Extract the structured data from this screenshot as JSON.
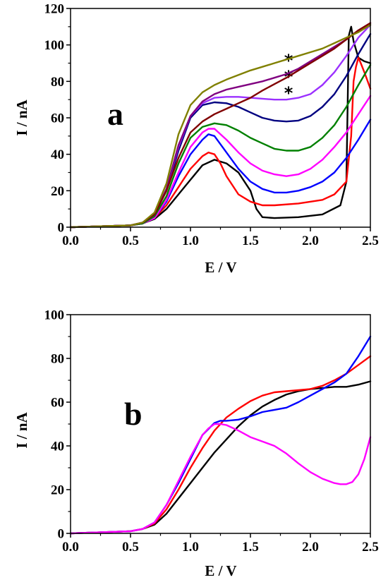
{
  "chart_data": [
    {
      "type": "line",
      "panel_label": "a",
      "xlabel": "E / V",
      "ylabel": "I / nA",
      "xlim": [
        0,
        2.5
      ],
      "ylim": [
        0,
        120
      ],
      "xticks": [
        "0.0",
        "0.5",
        "1.0",
        "1.5",
        "2.0",
        "2.5"
      ],
      "yticks": [
        "0",
        "20",
        "40",
        "60",
        "80",
        "100",
        "120"
      ],
      "annotations": [
        "*",
        "*",
        "*"
      ],
      "grid": false,
      "series": [
        {
          "color": "#000000",
          "x": [
            0,
            0.5,
            0.6,
            0.7,
            0.8,
            0.9,
            1.0,
            1.1,
            1.2,
            1.3,
            1.4,
            1.5,
            1.55,
            1.6,
            1.7,
            1.9,
            2.1,
            2.25,
            2.3,
            2.32,
            2.34,
            2.36,
            2.4,
            2.45,
            2.5
          ],
          "y": [
            0,
            1,
            2,
            4.5,
            10,
            18,
            26,
            34,
            37,
            35,
            30,
            20,
            10,
            5.5,
            5,
            5.5,
            7,
            12,
            25,
            105,
            110,
            102,
            93,
            91,
            90
          ]
        },
        {
          "color": "#ff0000",
          "x": [
            0,
            0.5,
            0.6,
            0.7,
            0.8,
            0.9,
            1.0,
            1.1,
            1.15,
            1.2,
            1.25,
            1.3,
            1.4,
            1.5,
            1.6,
            1.7,
            1.9,
            2.1,
            2.2,
            2.3,
            2.34,
            2.36,
            2.38,
            2.4,
            2.42,
            2.45,
            2.5
          ],
          "y": [
            0,
            1,
            2,
            5,
            12,
            22,
            32,
            39,
            41,
            40,
            35,
            28,
            18,
            14,
            12,
            12,
            13,
            15,
            18,
            25,
            50,
            80,
            88,
            93,
            90,
            85,
            76
          ]
        },
        {
          "color": "#0000ff",
          "x": [
            0,
            0.5,
            0.6,
            0.7,
            0.8,
            0.9,
            1.0,
            1.1,
            1.15,
            1.2,
            1.3,
            1.4,
            1.5,
            1.6,
            1.7,
            1.8,
            1.9,
            2.0,
            2.1,
            2.2,
            2.3,
            2.4,
            2.5
          ],
          "y": [
            0,
            1,
            2,
            5,
            14,
            28,
            40,
            48,
            51,
            50,
            41,
            32,
            25,
            21,
            19,
            19,
            20,
            22,
            25,
            30,
            38,
            48,
            59
          ]
        },
        {
          "color": "#ff00ff",
          "x": [
            0,
            0.5,
            0.6,
            0.7,
            0.8,
            0.9,
            1.0,
            1.1,
            1.15,
            1.2,
            1.3,
            1.4,
            1.5,
            1.6,
            1.7,
            1.8,
            1.9,
            2.0,
            2.1,
            2.2,
            2.3,
            2.4,
            2.5
          ],
          "y": [
            0,
            1,
            2,
            5,
            15,
            30,
            44,
            52,
            54,
            54,
            48,
            41,
            35,
            31,
            29,
            28,
            29,
            32,
            37,
            44,
            52,
            62,
            72
          ]
        },
        {
          "color": "#008000",
          "x": [
            0,
            0.5,
            0.6,
            0.7,
            0.8,
            0.9,
            1.0,
            1.1,
            1.2,
            1.3,
            1.4,
            1.5,
            1.6,
            1.7,
            1.8,
            1.9,
            2.0,
            2.1,
            2.2,
            2.3,
            2.4,
            2.5
          ],
          "y": [
            0,
            1,
            2,
            6,
            17,
            35,
            49,
            55,
            57,
            56,
            53,
            49,
            46,
            43,
            42,
            42,
            44,
            49,
            56,
            66,
            78,
            89
          ]
        },
        {
          "color": "#000080",
          "x": [
            0,
            0.5,
            0.6,
            0.7,
            0.8,
            0.9,
            1.0,
            1.1,
            1.2,
            1.3,
            1.4,
            1.5,
            1.6,
            1.7,
            1.8,
            1.9,
            2.0,
            2.1,
            2.2,
            2.3,
            2.4,
            2.5
          ],
          "y": [
            0,
            1,
            2.5,
            7,
            20,
            42,
            60,
            67,
            68.5,
            68,
            66,
            63,
            60,
            58.5,
            58,
            58.5,
            61,
            66,
            73,
            83,
            95,
            106
          ]
        },
        {
          "color": "#9b30ff",
          "x": [
            0,
            0.5,
            0.6,
            0.7,
            0.8,
            0.9,
            1.0,
            1.1,
            1.2,
            1.3,
            1.4,
            1.5,
            1.6,
            1.7,
            1.8,
            1.9,
            2.0,
            2.1,
            2.2,
            2.3,
            2.4,
            2.5
          ],
          "y": [
            0,
            1,
            2.5,
            7,
            21,
            44,
            61,
            68,
            71,
            71.5,
            71.5,
            71,
            70.5,
            70,
            70,
            71,
            73,
            78,
            85,
            94,
            104,
            111
          ]
        },
        {
          "color": "#800080",
          "x": [
            0,
            0.5,
            0.6,
            0.7,
            0.8,
            0.9,
            1.0,
            1.1,
            1.2,
            1.3,
            1.4,
            1.5,
            1.6,
            1.7,
            1.8,
            1.9,
            2.0,
            2.1,
            2.2,
            2.3,
            2.4,
            2.5
          ],
          "y": [
            0,
            1,
            2.5,
            7,
            21,
            45,
            61,
            69,
            73,
            75.5,
            77,
            78.5,
            80,
            82,
            84,
            87,
            91,
            95,
            99,
            103,
            108,
            112
          ]
        },
        {
          "color": "#800000",
          "x": [
            0,
            0.5,
            0.6,
            0.7,
            0.8,
            0.9,
            1.0,
            1.1,
            1.2,
            1.3,
            1.4,
            1.5,
            1.6,
            1.7,
            1.8,
            1.9,
            2.0,
            2.1,
            2.2,
            2.3,
            2.4,
            2.5
          ],
          "y": [
            0,
            1,
            2.5,
            7,
            20,
            38,
            52,
            58,
            62,
            65,
            68,
            71,
            75,
            78.5,
            82,
            86,
            90,
            94,
            98,
            103,
            108,
            112
          ]
        },
        {
          "color": "#808000",
          "x": [
            0,
            0.5,
            0.6,
            0.7,
            0.8,
            0.9,
            1.0,
            1.1,
            1.2,
            1.3,
            1.4,
            1.5,
            1.6,
            1.7,
            1.8,
            1.9,
            2.0,
            2.1,
            2.2,
            2.3,
            2.4,
            2.5
          ],
          "y": [
            0,
            1,
            2.5,
            8,
            24,
            51,
            67,
            74,
            78,
            81,
            83.5,
            86,
            88,
            90,
            92,
            94,
            96,
            98,
            101,
            104,
            107,
            111
          ]
        }
      ]
    },
    {
      "type": "line",
      "panel_label": "b",
      "xlabel": "E / V",
      "ylabel": "I / nA",
      "xlim": [
        0,
        2.5
      ],
      "ylim": [
        0,
        100
      ],
      "xticks": [
        "0.0",
        "0.5",
        "1.0",
        "1.5",
        "2.0",
        "2.5"
      ],
      "yticks": [
        "0",
        "20",
        "40",
        "60",
        "80",
        "100"
      ],
      "grid": false,
      "series": [
        {
          "color": "#000000",
          "x": [
            0,
            0.5,
            0.6,
            0.7,
            0.8,
            0.9,
            1.0,
            1.1,
            1.2,
            1.3,
            1.4,
            1.5,
            1.6,
            1.7,
            1.8,
            1.9,
            2.0,
            2.1,
            2.2,
            2.3,
            2.4,
            2.5
          ],
          "y": [
            0,
            1,
            2,
            4,
            9,
            16,
            23,
            30,
            37,
            43,
            49,
            54,
            58,
            61,
            63.5,
            65,
            66,
            66.5,
            67,
            67,
            68,
            69.5
          ]
        },
        {
          "color": "#ff0000",
          "x": [
            0,
            0.5,
            0.6,
            0.7,
            0.8,
            0.9,
            1.0,
            1.1,
            1.2,
            1.25,
            1.3,
            1.4,
            1.5,
            1.6,
            1.7,
            1.8,
            1.9,
            2.0,
            2.1,
            2.2,
            2.3,
            2.4,
            2.5
          ],
          "y": [
            0,
            1,
            2,
            4.5,
            11,
            20,
            30,
            39,
            47,
            50,
            53,
            57,
            60.5,
            63,
            64.5,
            65,
            65.5,
            66,
            67.5,
            70,
            73,
            77,
            81
          ]
        },
        {
          "color": "#0000ff",
          "x": [
            0,
            0.5,
            0.6,
            0.7,
            0.8,
            0.9,
            1.0,
            1.1,
            1.2,
            1.25,
            1.3,
            1.4,
            1.5,
            1.6,
            1.7,
            1.8,
            1.9,
            2.0,
            2.1,
            2.2,
            2.3,
            2.4,
            2.5
          ],
          "y": [
            0,
            1,
            2,
            5,
            13,
            23,
            34,
            45,
            50.5,
            51.5,
            51.5,
            52,
            53.5,
            55.5,
            56.5,
            57.5,
            60,
            63,
            66,
            69,
            73,
            81,
            90
          ]
        },
        {
          "color": "#ff00ff",
          "x": [
            0,
            0.5,
            0.6,
            0.7,
            0.8,
            0.9,
            1.0,
            1.1,
            1.15,
            1.2,
            1.25,
            1.3,
            1.4,
            1.5,
            1.6,
            1.7,
            1.8,
            1.9,
            2.0,
            2.1,
            2.2,
            2.25,
            2.3,
            2.35,
            2.4,
            2.45,
            2.5
          ],
          "y": [
            0,
            1,
            2,
            5,
            13,
            24,
            35,
            45,
            48,
            50,
            50,
            49.5,
            47,
            44,
            42,
            40,
            36.5,
            32,
            28,
            25,
            23,
            22.5,
            22.5,
            23.5,
            27,
            34,
            44
          ]
        }
      ]
    }
  ]
}
